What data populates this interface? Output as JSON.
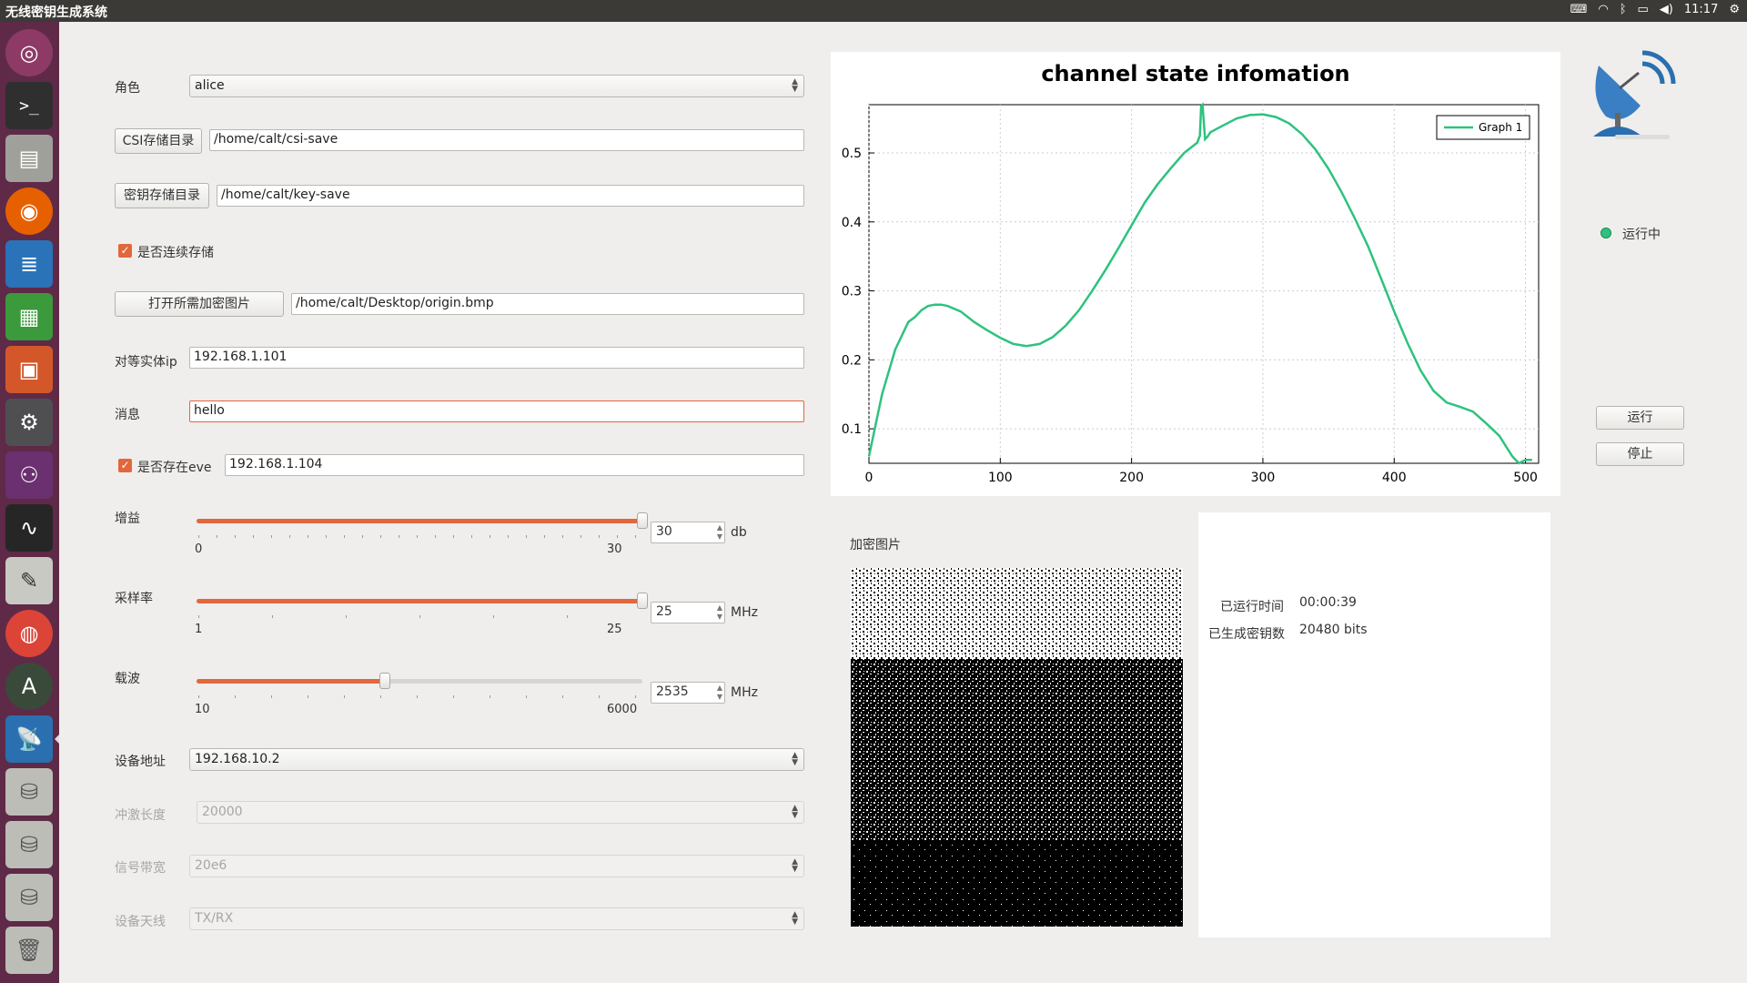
{
  "window": {
    "title": "无线密钥生成系统",
    "time": "11:17"
  },
  "form": {
    "role_label": "角色",
    "role_value": "alice",
    "csi_dir_button": "CSI存储目录",
    "csi_dir_value": "/home/calt/csi-save",
    "key_dir_button": "密钥存储目录",
    "key_dir_value": "/home/calt/key-save",
    "continuous_label": "是否连续存储",
    "continuous_checked": true,
    "open_image_button": "打开所需加密图片",
    "image_path": "/home/calt/Desktop/origin.bmp",
    "peer_ip_label": "对等实体ip",
    "peer_ip_value": "192.168.1.101",
    "message_label": "消息",
    "message_value": "hello",
    "eve_label": "是否存在eve",
    "eve_checked": true,
    "eve_ip_value": "192.168.1.104",
    "gain": {
      "label": "增益",
      "min": "0",
      "max": "30",
      "value": "30",
      "unit": "db",
      "fraction": 1.0
    },
    "sample_rate": {
      "label": "采样率",
      "min": "1",
      "max": "25",
      "value": "25",
      "unit": "MHz",
      "fraction": 1.0
    },
    "carrier": {
      "label": "载波",
      "min": "10",
      "max": "6000",
      "value": "2535",
      "unit": "MHz",
      "fraction": 0.422
    },
    "device_addr_label": "设备地址",
    "device_addr_value": "192.168.10.2",
    "burst_len_label": "冲激长度",
    "burst_len_value": "20000",
    "bandwidth_label": "信号带宽",
    "bandwidth_value": "20e6",
    "antenna_label": "设备天线",
    "antenna_value": "TX/RX"
  },
  "chart_data": {
    "type": "line",
    "title": "channel state infomation",
    "xlabel": "",
    "ylabel": "",
    "xlim": [
      0,
      510
    ],
    "ylim": [
      0.05,
      0.57
    ],
    "xticks": [
      0,
      100,
      200,
      300,
      400,
      500
    ],
    "yticks": [
      0.1,
      0.2,
      0.3,
      0.4,
      0.5
    ],
    "grid": true,
    "legend_position": "top-right",
    "series": [
      {
        "name": "Graph 1",
        "color": "#2ec27e",
        "x": [
          0,
          10,
          20,
          30,
          35,
          40,
          45,
          50,
          55,
          60,
          70,
          80,
          90,
          100,
          110,
          120,
          130,
          140,
          150,
          160,
          170,
          180,
          190,
          200,
          210,
          220,
          230,
          240,
          250,
          252,
          253,
          254,
          256,
          258,
          260,
          270,
          280,
          290,
          300,
          310,
          320,
          330,
          340,
          350,
          360,
          370,
          380,
          390,
          400,
          410,
          420,
          430,
          440,
          450,
          460,
          470,
          480,
          490,
          495,
          500,
          505
        ],
        "y": [
          0.06,
          0.15,
          0.215,
          0.255,
          0.262,
          0.272,
          0.278,
          0.28,
          0.28,
          0.278,
          0.27,
          0.255,
          0.243,
          0.232,
          0.223,
          0.22,
          0.223,
          0.233,
          0.25,
          0.272,
          0.3,
          0.33,
          0.362,
          0.395,
          0.428,
          0.455,
          0.478,
          0.5,
          0.515,
          0.525,
          0.568,
          0.57,
          0.52,
          0.524,
          0.53,
          0.54,
          0.55,
          0.555,
          0.556,
          0.552,
          0.543,
          0.527,
          0.505,
          0.477,
          0.443,
          0.405,
          0.365,
          0.318,
          0.27,
          0.225,
          0.185,
          0.155,
          0.138,
          0.132,
          0.125,
          0.108,
          0.09,
          0.06,
          0.05,
          0.055,
          0.055
        ]
      }
    ]
  },
  "image_panel": {
    "label": "加密图片"
  },
  "status": {
    "indicator": "运行中",
    "color": "#2ec27e"
  },
  "buttons": {
    "run": "运行",
    "stop": "停止"
  },
  "info": {
    "runtime_label": "已运行时间",
    "runtime_value": "00:00:39",
    "keys_label": "已生成密钥数",
    "keys_value": "20480 bits"
  },
  "launcher": {
    "items": [
      "ubuntu-icon",
      "terminal-icon",
      "files-icon",
      "firefox-icon",
      "writer-icon",
      "calc-icon",
      "impress-icon",
      "settings-icon",
      "gnuradio-icon",
      "monitor-icon",
      "text-editor-icon",
      "chrome-icon",
      "software-updater-icon",
      "satellite-app-icon",
      "disk-icon",
      "disk-icon",
      "disk-icon",
      "trash-icon"
    ]
  }
}
